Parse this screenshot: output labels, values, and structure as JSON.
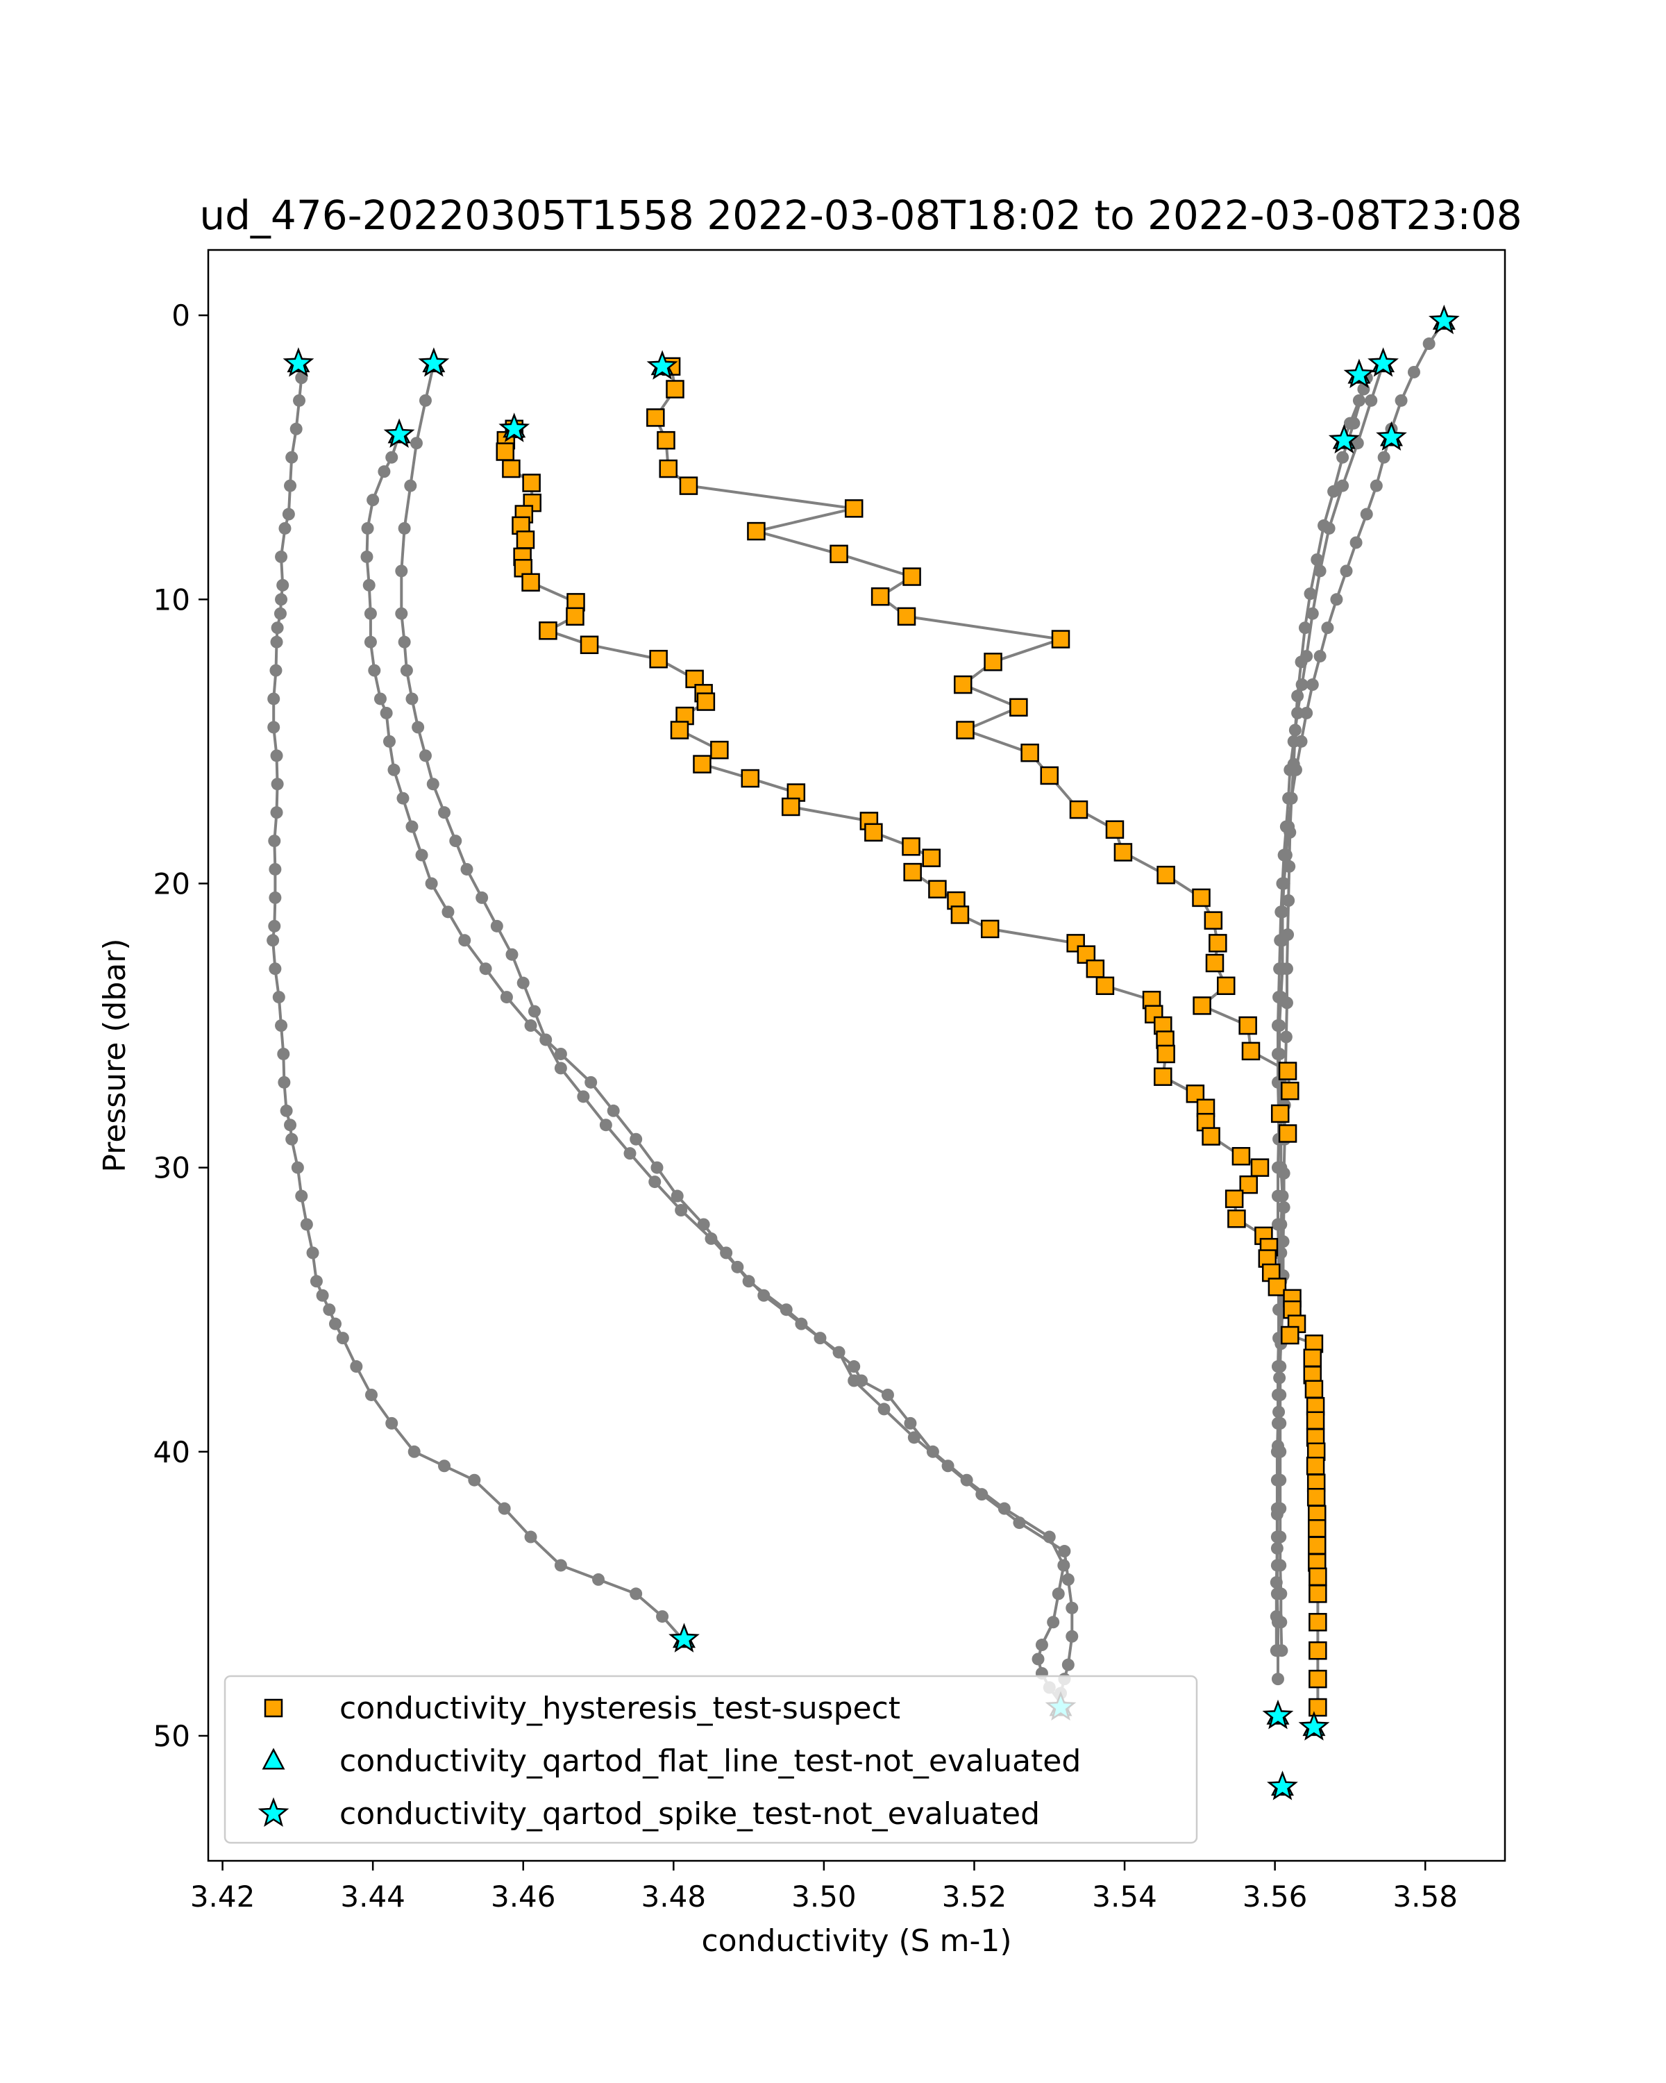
{
  "chart_data": {
    "type": "scatter",
    "title": "ud_476-20220305T1558 2022-03-08T18:02 to 2022-03-08T23:08",
    "xlabel": "conductivity (S m-1)",
    "ylabel": "Pressure (dbar)",
    "xlim": [
      3.4181,
      3.5906
    ],
    "ylim": [
      54.4,
      -2.3
    ],
    "y_inverted": true,
    "x_ticks": [
      "3.42",
      "3.44",
      "3.46",
      "3.48",
      "3.50",
      "3.52",
      "3.54",
      "3.56",
      "3.58"
    ],
    "x_tick_values": [
      3.42,
      3.44,
      3.46,
      3.48,
      3.5,
      3.52,
      3.54,
      3.56,
      3.58
    ],
    "y_ticks": [
      "0",
      "10",
      "20",
      "30",
      "40",
      "50"
    ],
    "y_tick_values": [
      0,
      10,
      20,
      30,
      40,
      50
    ],
    "legend_position": "lower-left",
    "grid": false,
    "colors": {
      "profile_line": "#808080",
      "hysteresis_marker": "#ffa500",
      "qartod_marker": "#00ffff",
      "marker_edge": "#000000"
    },
    "profiles": [
      {
        "x": [
          3.4301,
          3.4305,
          3.4302,
          3.4298,
          3.4292,
          3.429,
          3.4288,
          3.4283,
          3.4278,
          3.428,
          3.4278,
          3.4277,
          3.4273,
          3.4272,
          3.4271,
          3.4268,
          3.4268,
          3.4272,
          3.4273,
          3.4272,
          3.4269,
          3.427,
          3.427,
          3.4269,
          3.4267,
          3.427,
          3.4275,
          3.4278,
          3.4281,
          3.4282,
          3.4285,
          3.429,
          3.4292,
          3.43,
          3.4305,
          3.4312,
          3.432,
          3.4325,
          3.4333,
          3.4342,
          3.435,
          3.436,
          3.4378,
          3.4398,
          3.4425,
          3.4455,
          3.4495,
          3.4535,
          3.4575,
          3.461,
          3.465,
          3.47,
          3.475,
          3.4785,
          3.4812
        ],
        "y": [
          1.7,
          2.2,
          3.0,
          4.0,
          5.0,
          6.0,
          7.0,
          7.5,
          8.5,
          9.5,
          10.0,
          10.5,
          11.0,
          11.5,
          12.5,
          13.5,
          14.5,
          15.5,
          16.5,
          17.5,
          18.5,
          19.5,
          20.5,
          21.5,
          22.0,
          23.0,
          24.0,
          25.0,
          26.0,
          27.0,
          28.0,
          28.5,
          29.0,
          30.0,
          31.0,
          32.0,
          33.0,
          34.0,
          34.5,
          35.0,
          35.5,
          36.0,
          37.0,
          38.0,
          39.0,
          40.0,
          40.5,
          41.0,
          42.0,
          43.0,
          44.0,
          44.5,
          45.0,
          45.8,
          46.6
        ]
      },
      {
        "x": [
          3.4435,
          3.4425,
          3.4415,
          3.44,
          3.4393,
          3.4392,
          3.4395,
          3.4397,
          3.4397,
          3.4402,
          3.441,
          3.4418,
          3.4422,
          3.4428,
          3.444,
          3.4452,
          3.4465,
          3.4478,
          3.45,
          3.4522,
          3.455,
          3.4578,
          3.461,
          3.465,
          3.469,
          3.472,
          3.475,
          3.4778,
          3.4805,
          3.484,
          3.487,
          3.49,
          3.495,
          3.4995,
          3.504,
          3.505,
          3.5085,
          3.5115,
          3.5145,
          3.519,
          3.524,
          3.53,
          3.5319,
          3.5312,
          3.5305,
          3.529,
          3.5285,
          3.529,
          3.53,
          3.5319
        ],
        "y": [
          4.2,
          5.0,
          5.5,
          6.5,
          7.5,
          8.5,
          9.5,
          10.5,
          11.5,
          12.5,
          13.5,
          14.0,
          15.0,
          16.0,
          17.0,
          18.0,
          19.0,
          20.0,
          21.0,
          22.0,
          23.0,
          24.0,
          25.0,
          26.0,
          27.0,
          28.0,
          29.0,
          30.0,
          31.0,
          32.0,
          33.0,
          34.0,
          35.0,
          36.0,
          37.0,
          37.5,
          38.0,
          39.0,
          40.0,
          41.0,
          42.0,
          43.0,
          44.0,
          45.0,
          46.0,
          46.8,
          47.3,
          47.8,
          48.3,
          49.0
        ]
      },
      {
        "x": [
          3.4481,
          3.447,
          3.4458,
          3.445,
          3.4442,
          3.4438,
          3.4438,
          3.4442,
          3.4445,
          3.4452,
          3.446,
          3.447,
          3.448,
          3.4495,
          3.451,
          3.4525,
          3.4545,
          3.4565,
          3.4585,
          3.46,
          3.4615,
          3.463,
          3.465,
          3.468,
          3.471,
          3.4742,
          3.4775,
          3.481,
          3.485,
          3.4885,
          3.492,
          3.497,
          3.502,
          3.504,
          3.508,
          3.512,
          3.5165,
          3.521,
          3.526,
          3.532,
          3.5325,
          3.533,
          3.533,
          3.5325,
          3.532,
          3.5315
        ],
        "y": [
          1.7,
          3.0,
          4.5,
          6.0,
          7.5,
          9.0,
          10.5,
          11.5,
          12.5,
          13.5,
          14.5,
          15.5,
          16.5,
          17.5,
          18.5,
          19.5,
          20.5,
          21.5,
          22.5,
          23.5,
          24.5,
          25.5,
          26.5,
          27.5,
          28.5,
          29.5,
          30.5,
          31.5,
          32.5,
          33.5,
          34.5,
          35.5,
          36.5,
          37.5,
          38.5,
          39.5,
          40.5,
          41.5,
          42.5,
          43.5,
          44.5,
          45.5,
          46.5,
          47.5,
          48.0,
          48.5
        ]
      },
      {
        "x": [
          3.5744,
          3.5728,
          3.571,
          3.569,
          3.5672,
          3.566,
          3.565,
          3.5642,
          3.5636,
          3.563,
          3.5625,
          3.562,
          3.5618,
          3.5615,
          3.5612,
          3.561,
          3.5608,
          3.5607,
          3.5606,
          3.5605,
          3.5604,
          3.5604,
          3.5604,
          3.5605,
          3.5605,
          3.5604,
          3.5604,
          3.5604,
          3.5605,
          3.5605,
          3.5605,
          3.5605,
          3.5604,
          3.5604,
          3.5604,
          3.5603,
          3.5603,
          3.5603,
          3.5603,
          3.5603,
          3.5603,
          3.5604,
          3.5604,
          3.5604
        ],
        "y": [
          1.7,
          3.0,
          4.5,
          6.0,
          7.5,
          9.0,
          10.5,
          12.0,
          13.0,
          14.0,
          15.0,
          16.0,
          17.0,
          18.0,
          19.0,
          20.0,
          21.0,
          22.0,
          23.0,
          24.0,
          25.0,
          26.0,
          27.0,
          28.0,
          29.0,
          30.0,
          31.0,
          32.0,
          33.0,
          34.0,
          35.0,
          36.0,
          37.0,
          38.0,
          39.0,
          40.0,
          41.0,
          42.0,
          43.0,
          44.0,
          45.0,
          46.0,
          47.0,
          48.0
        ]
      },
      {
        "x": [
          3.5825,
          3.5805,
          3.5785,
          3.5768,
          3.5755,
          3.5745,
          3.5735,
          3.5722,
          3.5708,
          3.5695,
          3.5682,
          3.567,
          3.566,
          3.565,
          3.5642,
          3.5635,
          3.5628,
          3.5622,
          3.5618,
          3.5615,
          3.5612,
          3.561,
          3.561,
          3.561,
          3.5608,
          3.5606,
          3.5606,
          3.5606,
          3.5608,
          3.5608,
          3.5608,
          3.561,
          3.5608,
          3.5608,
          3.5608,
          3.5608,
          3.5607,
          3.5607,
          3.5607,
          3.5607,
          3.5607,
          3.5607,
          3.5607,
          3.5607,
          3.5607,
          3.5608,
          3.5608,
          3.5609
        ],
        "y": [
          0.2,
          1.0,
          2.0,
          3.0,
          4.0,
          5.0,
          6.0,
          7.0,
          8.0,
          9.0,
          10.0,
          11.0,
          12.0,
          13.0,
          14.0,
          15.0,
          16.0,
          17.0,
          18.0,
          19.0,
          20.0,
          21.0,
          22.0,
          23.0,
          24.0,
          25.0,
          26.0,
          27.0,
          28.0,
          29.0,
          30.0,
          31.0,
          32.0,
          33.0,
          34.0,
          35.0,
          36.0,
          37.0,
          38.0,
          39.0,
          40.0,
          41.0,
          42.0,
          43.0,
          44.0,
          45.0,
          46.0,
          47.0
        ]
      },
      {
        "x": [
          3.5692,
          3.57,
          3.5712,
          3.5722,
          3.5718,
          3.5705,
          3.569,
          3.5678,
          3.5665,
          3.5656,
          3.5647,
          3.564,
          3.5635,
          3.563,
          3.5627,
          3.5625,
          3.5622,
          3.562,
          3.5619,
          3.5618,
          3.5617,
          3.5616,
          3.5616,
          3.5615,
          3.5614,
          3.5613,
          3.5613,
          3.5612,
          3.5612,
          3.5611,
          3.5611,
          3.561,
          3.5608,
          3.5606,
          3.5605,
          3.5604,
          3.5604,
          3.5603,
          3.5603,
          3.5602,
          3.5602,
          3.5602
        ],
        "y": [
          4.4,
          3.8,
          3.0,
          2.2,
          2.6,
          3.8,
          5.0,
          6.2,
          7.4,
          8.6,
          9.8,
          11.0,
          12.2,
          13.4,
          14.6,
          15.8,
          17.0,
          18.2,
          19.4,
          20.6,
          21.8,
          23.0,
          24.2,
          25.4,
          26.6,
          27.8,
          29.0,
          30.2,
          31.4,
          32.6,
          33.8,
          35.0,
          36.2,
          37.4,
          38.6,
          39.8,
          41.0,
          42.2,
          43.4,
          44.6,
          45.8,
          47.0
        ]
      }
    ],
    "series": [
      {
        "name": "conductivity_hysteresis_test-suspect",
        "marker": "square",
        "segments": [
          {
            "x": [
              3.4797,
              3.4802,
              3.4776,
              3.479,
              3.4793,
              3.482,
              3.504,
              3.491,
              3.502,
              3.5117,
              3.5075,
              3.511,
              3.5315,
              3.5225,
              3.5185,
              3.5259,
              3.5188,
              3.5274,
              3.53,
              3.5339,
              3.5387,
              3.5398,
              3.5455,
              3.5502,
              3.5518,
              3.5524,
              3.552,
              3.5535,
              3.5503,
              3.5564,
              3.5568,
              3.5617,
              3.562,
              3.5607,
              3.5617
            ],
            "y": [
              1.8,
              2.6,
              3.6,
              4.4,
              5.4,
              6.0,
              6.8,
              7.6,
              8.4,
              9.2,
              9.9,
              10.6,
              11.4,
              12.2,
              13.0,
              13.8,
              14.6,
              15.4,
              16.2,
              17.4,
              18.1,
              18.9,
              19.7,
              20.5,
              21.3,
              22.1,
              22.8,
              23.6,
              24.3,
              25.0,
              25.9,
              26.6,
              27.3,
              28.1,
              28.8
            ]
          },
          {
            "x": [
              3.4588,
              3.4577,
              3.4576,
              3.4584,
              3.4611,
              3.4612,
              3.4601,
              3.4597,
              3.4603,
              3.4599,
              3.46,
              3.461,
              3.467,
              3.4669,
              3.4633,
              3.4688,
              3.478,
              3.4828,
              3.484,
              3.4843,
              3.4815,
              3.4808,
              3.4861,
              3.4838,
              3.4902,
              3.4963,
              3.4956,
              3.506,
              3.5066,
              3.5116,
              3.5143,
              3.5118,
              3.5151,
              3.5176,
              3.5181,
              3.5221,
              3.5335,
              3.5349,
              3.5361,
              3.5374,
              3.5436,
              3.5439,
              3.5451,
              3.5454,
              3.5455,
              3.5451,
              3.5494,
              3.5508,
              3.5508,
              3.5515,
              3.5555,
              3.558,
              3.5565,
              3.5546,
              3.5549,
              3.5585,
              3.5592,
              3.559,
              3.5595,
              3.5603,
              3.5623,
              3.5623,
              3.5629,
              3.562,
              3.5652,
              3.565,
              3.565,
              3.5652,
              3.5654,
              3.5654,
              3.5654,
              3.5655,
              3.5654,
              3.5655,
              3.5655,
              3.5656,
              3.5656,
              3.5656,
              3.5656,
              3.5657,
              3.5657,
              3.5657,
              3.5657,
              3.5657,
              3.5657
            ],
            "y": [
              4.0,
              4.4,
              4.8,
              5.4,
              5.9,
              6.6,
              7.0,
              7.4,
              7.9,
              8.5,
              8.9,
              9.4,
              10.1,
              10.6,
              11.1,
              11.6,
              12.1,
              12.8,
              13.3,
              13.6,
              14.1,
              14.6,
              15.3,
              15.8,
              16.3,
              16.8,
              17.3,
              17.8,
              18.2,
              18.7,
              19.1,
              19.6,
              20.2,
              20.6,
              21.1,
              21.6,
              22.1,
              22.5,
              23.0,
              23.6,
              24.1,
              24.6,
              25.0,
              25.5,
              26.0,
              26.8,
              27.4,
              27.9,
              28.4,
              28.9,
              29.6,
              30.0,
              30.6,
              31.1,
              31.8,
              32.4,
              32.8,
              33.2,
              33.7,
              34.2,
              34.6,
              35.0,
              35.5,
              35.9,
              36.2,
              36.7,
              37.3,
              37.8,
              38.4,
              38.9,
              39.5,
              40.0,
              40.5,
              41.1,
              41.6,
              42.2,
              42.7,
              43.3,
              43.9,
              44.4,
              45.0,
              46.0,
              47.0,
              48.0,
              49.0
            ]
          }
        ]
      },
      {
        "name": "conductivity_qartod_flat_line_test-not_evaluated",
        "marker": "triangle",
        "x": [
          3.4301,
          3.4481,
          3.4435,
          3.4588,
          3.4785,
          3.4814,
          3.5315,
          3.5604,
          3.561,
          3.5652,
          3.5692,
          3.5712,
          3.5744,
          3.5755,
          3.5825
        ],
        "y": [
          1.7,
          1.7,
          4.2,
          4.0,
          1.8,
          46.6,
          49.0,
          49.3,
          51.8,
          49.7,
          4.4,
          2.1,
          1.7,
          4.3,
          0.2
        ]
      },
      {
        "name": "conductivity_qartod_spike_test-not_evaluated",
        "marker": "star",
        "x": [
          3.4301,
          3.4481,
          3.4435,
          3.4588,
          3.4785,
          3.4814,
          3.5315,
          3.5604,
          3.561,
          3.5652,
          3.5692,
          3.5712,
          3.5744,
          3.5755,
          3.5825
        ],
        "y": [
          1.7,
          1.7,
          4.2,
          4.0,
          1.8,
          46.6,
          49.0,
          49.3,
          51.8,
          49.7,
          4.4,
          2.1,
          1.7,
          4.3,
          0.2
        ]
      }
    ]
  }
}
